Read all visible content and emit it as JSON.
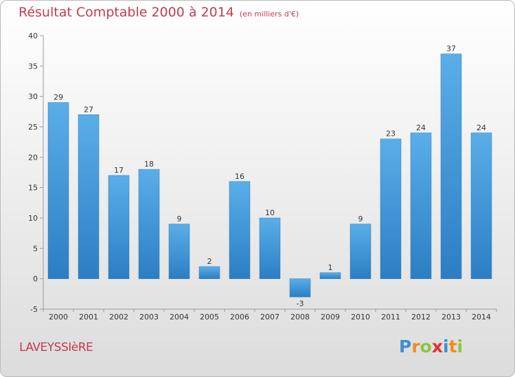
{
  "title": {
    "main": "Résultat Comptable 2000 à 2014",
    "unit": "(en milliers d'€)"
  },
  "commune": "LAVEYSSIèRE",
  "logo": {
    "text": "Proxiti",
    "letters": [
      {
        "ch": "P",
        "color": "#3b8fd6"
      },
      {
        "ch": "r",
        "color": "#f08c1e"
      },
      {
        "ch": "o",
        "color": "#8cc63f"
      },
      {
        "ch": "x",
        "color": "#e0312b"
      },
      {
        "ch": "i",
        "color": "#3b8fd6"
      },
      {
        "ch": "t",
        "color": "#f08c1e"
      },
      {
        "ch": "i",
        "color": "#8cc63f"
      }
    ]
  },
  "colors": {
    "bar_top": "#5aaee8",
    "bar_bottom": "#2c7ec4",
    "title": "#c43b4e",
    "grid": "#bbbbbb"
  },
  "chart_data": {
    "type": "bar",
    "title": "Résultat Comptable 2000 à 2014",
    "subtitle": "(en milliers d'€)",
    "xlabel": "",
    "ylabel": "",
    "categories": [
      "2000",
      "2001",
      "2002",
      "2003",
      "2004",
      "2005",
      "2006",
      "2007",
      "2008",
      "2009",
      "2010",
      "2011",
      "2012",
      "2013",
      "2014"
    ],
    "values": [
      29,
      27,
      17,
      18,
      9,
      2,
      16,
      10,
      -3,
      1,
      9,
      23,
      24,
      37,
      24
    ],
    "value_labels": [
      "29",
      "27",
      "17",
      "18",
      "9",
      "2",
      "16",
      "10",
      "-3",
      "1",
      "9",
      "23",
      "24",
      "37",
      "24"
    ],
    "ylim": [
      -5,
      40
    ],
    "yticks": [
      -5,
      0,
      5,
      10,
      15,
      20,
      25,
      30,
      35,
      40
    ],
    "ytick_labels": [
      "-5",
      "0",
      "5",
      "10",
      "15",
      "20",
      "25",
      "30",
      "35",
      "40"
    ],
    "grid": false,
    "legend": "none"
  }
}
